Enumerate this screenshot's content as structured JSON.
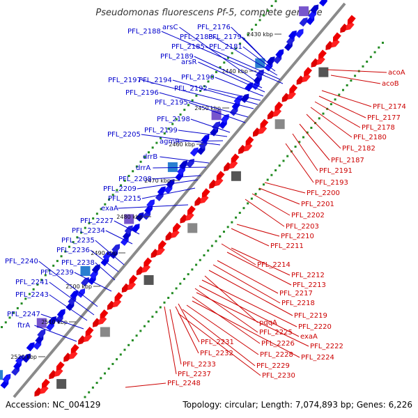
{
  "title": "Pseudomonas fluorescens Pf-5, complete genome",
  "accession": "Accession: NC_004129",
  "summary": "Topology: circular; Length: 7,074,893 bp; Genes: 6,226",
  "colors": {
    "forward": "#0000cc",
    "reverse": "#cc0000",
    "backbone": "#777777",
    "gc": "#228b22"
  },
  "kbp_ticks": [
    "2430 kbp",
    "2440 kbp",
    "2450 kbp",
    "2460 kbp",
    "2470 kbp",
    "2480 kbp",
    "2490 kbp",
    "2500 kbp",
    "2510 kbp",
    "2520 kbp"
  ],
  "forward_genes": [
    "PFL_2176",
    "PFL_2179",
    "PFL_2181",
    "PFL_2183",
    "PFL_2185",
    "PFL_2188",
    "arsC",
    "PFL_2189",
    "arsR",
    "PFL_2190",
    "PFL_2192",
    "PFL_2194",
    "PFL_2197",
    "PFL_2196",
    "PFL_2195",
    "PFL_2198",
    "PFL_2199",
    "agmR",
    "PFL_2205",
    "drrB",
    "drrA",
    "PFL_2208",
    "PFL_2209",
    "PFL_2215",
    "exaA",
    "PFL_2227",
    "PFL_2234",
    "PFL_2235",
    "PFL_2236",
    "PFL_2238",
    "PFL_2239",
    "PFL_2240",
    "PFL_2241",
    "PFL_2243",
    "PFL_2247",
    "ftrA"
  ],
  "reverse_genes": [
    "acoA",
    "acoB",
    "PFL_2174",
    "PFL_2177",
    "PFL_2178",
    "PFL_2180",
    "PFL_2182",
    "PFL_2187",
    "PFL_2191",
    "PFL_2193",
    "PFL_2200",
    "PFL_2201",
    "PFL_2202",
    "PFL_2203",
    "PFL_2210",
    "PFL_2211",
    "PFL_2214",
    "PFL_2212",
    "PFL_2213",
    "PFL_2217",
    "PFL_2218",
    "PFL_2219",
    "pqqA",
    "PFL_2220",
    "exaA",
    "PFL_2225",
    "PFL_2222",
    "PFL_2226",
    "PFL_2224",
    "PFL_2228",
    "PFL_2231",
    "PFL_2232",
    "PFL_2229",
    "PFL_2230",
    "PFL_2233",
    "PFL_2237",
    "PFL_2248"
  ]
}
